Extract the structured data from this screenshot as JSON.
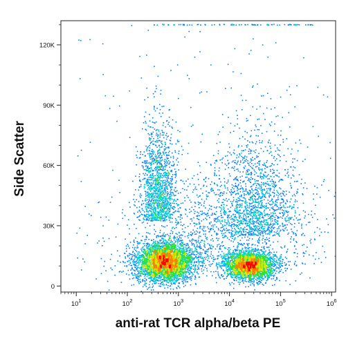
{
  "chart_data": {
    "type": "scatter",
    "plot_style": "flow cytometry density dot plot",
    "xlabel": "anti-rat TCR alpha/beta PE",
    "ylabel": "Side Scatter",
    "x_scale": "log",
    "x_range": [
      5,
      1200000
    ],
    "y_range": [
      -3000,
      132000
    ],
    "x_ticks": [
      {
        "value": 10,
        "base": "10",
        "exp": "1"
      },
      {
        "value": 100,
        "base": "10",
        "exp": "2"
      },
      {
        "value": 1000,
        "base": "10",
        "exp": "3"
      },
      {
        "value": 10000,
        "base": "10",
        "exp": "4"
      },
      {
        "value": 100000,
        "base": "10",
        "exp": "5"
      },
      {
        "value": 1000000,
        "base": "10",
        "exp": "6"
      }
    ],
    "y_ticks": [
      {
        "value": 0,
        "label": "0"
      },
      {
        "value": 30000,
        "label": "30K"
      },
      {
        "value": 60000,
        "label": "60K"
      },
      {
        "value": 90000,
        "label": "90K"
      },
      {
        "value": 120000,
        "label": "120K"
      }
    ],
    "populations": [
      {
        "center_x": 550,
        "center_y": 12000,
        "spread_log10_x": 0.28,
        "spread_y": 5000,
        "density": "highest"
      },
      {
        "center_x": 25000,
        "center_y": 10000,
        "spread_log10_x": 0.25,
        "spread_y": 3500,
        "density": "high"
      },
      {
        "center_x": 400,
        "center_y": 50000,
        "spread_log10_x": 0.18,
        "spread_y": 22000,
        "density": "low"
      },
      {
        "center_x": 30000,
        "center_y": 45000,
        "spread_log10_x": 0.4,
        "spread_y": 25000,
        "density": "low"
      },
      {
        "center_x": 8000,
        "center_y": 30000,
        "spread_log10_x": 0.9,
        "spread_y": 25000,
        "density": "sparse"
      }
    ],
    "color_scale": [
      "#0000c8",
      "#0080ff",
      "#00d0d0",
      "#30e030",
      "#e0e000",
      "#ff8000",
      "#ff0000"
    ],
    "grid": false,
    "legend": "none"
  }
}
